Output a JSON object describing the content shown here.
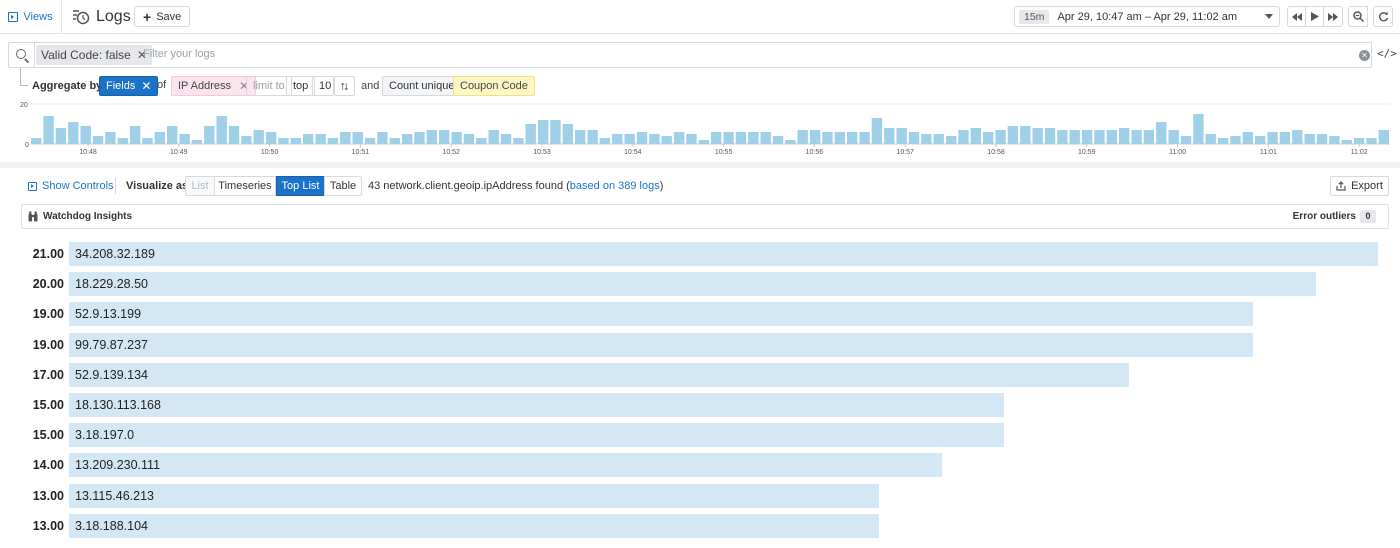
{
  "header": {
    "views_label": "Views",
    "title": "Logs",
    "save_label": "Save",
    "time_preset": "15m",
    "time_range": "Apr 29, 10:47 am – Apr 29, 11:02 am"
  },
  "search": {
    "filter_chip": "Valid Code: false",
    "placeholder": "Filter your logs"
  },
  "aggregate": {
    "label": "Aggregate by",
    "fields_label": "Fields",
    "of_text": "of",
    "facet": "IP Address",
    "limit_label": "limit to",
    "direction": "top",
    "limit": "10",
    "and_text": "and",
    "measure": "Count unique",
    "measure_field": "Coupon Code"
  },
  "timeline": {
    "ymax_label": "20",
    "ymin_label": "0",
    "ymax": 20,
    "ticks": [
      "10:48",
      "10:49",
      "10:50",
      "10:51",
      "10:52",
      "10:53",
      "10:54",
      "10:55",
      "10:56",
      "10:57",
      "10:58",
      "10:59",
      "11:00",
      "11:01",
      "11:02"
    ],
    "values": [
      3,
      14,
      8,
      11,
      9,
      4,
      6,
      3,
      9,
      3,
      6,
      9,
      5,
      2,
      9,
      14,
      9,
      4,
      7,
      6,
      3,
      3,
      5,
      5,
      3,
      6,
      6,
      3,
      6,
      3,
      5,
      6,
      7,
      7,
      6,
      5,
      3,
      7,
      5,
      3,
      10,
      12,
      12,
      10,
      7,
      7,
      3,
      5,
      5,
      6,
      5,
      4,
      6,
      5,
      2,
      6,
      6,
      6,
      6,
      6,
      4,
      2,
      7,
      7,
      6,
      6,
      6,
      6,
      13,
      8,
      8,
      6,
      5,
      5,
      4,
      7,
      8,
      6,
      7,
      9,
      9,
      8,
      8,
      7,
      7,
      7,
      7,
      7,
      8,
      7,
      7,
      11,
      7,
      4,
      15,
      5,
      3,
      4,
      6,
      4,
      6,
      6,
      7,
      5,
      5,
      4,
      2,
      3,
      3,
      7
    ]
  },
  "controls": {
    "show_controls": "Show Controls",
    "visualize_label": "Visualize as",
    "tabs": [
      "List",
      "Timeseries",
      "Top List",
      "Table"
    ],
    "found_count": "43 network.client.geoip.ipAddress found (",
    "found_link": "based on 389 logs",
    "found_close": ")",
    "export_label": "Export"
  },
  "watchdog": {
    "label": "Watchdog Insights",
    "error_label": "Error outliers",
    "error_count": "0"
  },
  "toplist": [
    {
      "value": "21.00",
      "label": "34.208.32.189"
    },
    {
      "value": "20.00",
      "label": "18.229.28.50"
    },
    {
      "value": "19.00",
      "label": "52.9.13.199"
    },
    {
      "value": "19.00",
      "label": "99.79.87.237"
    },
    {
      "value": "17.00",
      "label": "52.9.139.134"
    },
    {
      "value": "15.00",
      "label": "18.130.113.168"
    },
    {
      "value": "15.00",
      "label": "3.18.197.0"
    },
    {
      "value": "14.00",
      "label": "13.209.230.111"
    },
    {
      "value": "13.00",
      "label": "13.115.46.213"
    },
    {
      "value": "13.00",
      "label": "3.18.188.104"
    }
  ],
  "colors": {
    "accent": "#1a73c9",
    "bar": "#d3e8f4",
    "mini_bar": "#9fd0e8"
  }
}
